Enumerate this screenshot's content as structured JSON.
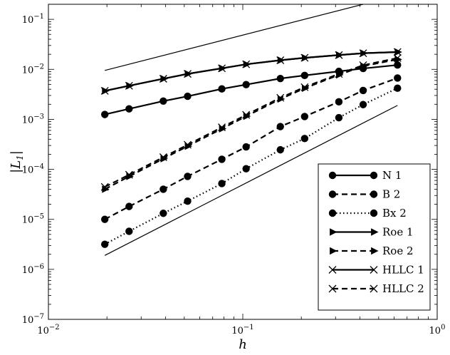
{
  "chart_data": {
    "type": "line",
    "x_scale": "log",
    "y_scale": "log",
    "xlim": [
      0.01,
      1
    ],
    "ylim": [
      1e-07,
      0.2
    ],
    "xlabel": "h",
    "ylabel": "|L_1|",
    "grid": false,
    "legend_position": "lower-right",
    "x_ticks": [
      {
        "value": 0.01,
        "base": "10",
        "exp": "−2"
      },
      {
        "value": 0.1,
        "base": "10",
        "exp": "−1"
      },
      {
        "value": 1,
        "base": "10",
        "exp": "0"
      }
    ],
    "y_ticks": [
      {
        "value": 1e-07,
        "base": "10",
        "exp": "−7"
      },
      {
        "value": 1e-06,
        "base": "10",
        "exp": "−6"
      },
      {
        "value": 1e-05,
        "base": "10",
        "exp": "−5"
      },
      {
        "value": 0.0001,
        "base": "10",
        "exp": "−4"
      },
      {
        "value": 0.001,
        "base": "10",
        "exp": "−3"
      },
      {
        "value": 0.01,
        "base": "10",
        "exp": "−2"
      },
      {
        "value": 0.1,
        "base": "10",
        "exp": "−1"
      }
    ],
    "x": [
      0.0195,
      0.026,
      0.039,
      0.052,
      0.078,
      0.104,
      0.156,
      0.208,
      0.312,
      0.416,
      0.625
    ],
    "series": [
      {
        "name": "N 1",
        "style": "solid",
        "marker": "circle",
        "values": [
          0.00125,
          0.00162,
          0.00232,
          0.00289,
          0.00406,
          0.00495,
          0.00655,
          0.00755,
          0.0091,
          0.0104,
          0.0122
        ]
      },
      {
        "name": "B 2",
        "style": "dashed",
        "marker": "circle",
        "values": [
          1e-05,
          1.81e-05,
          4e-05,
          7.24e-05,
          0.000159,
          0.000281,
          0.000717,
          0.00114,
          0.00224,
          0.00378,
          0.0067
        ]
      },
      {
        "name": "Bx 2",
        "style": "dotted",
        "marker": "circle",
        "values": [
          3.17e-06,
          5.77e-06,
          1.32e-05,
          2.31e-05,
          5.2e-05,
          0.000103,
          0.000246,
          0.000413,
          0.00108,
          0.00197,
          0.0042
        ]
      },
      {
        "name": "Roe 1",
        "style": "solid",
        "marker": "triangle-right",
        "values": [
          0.00371,
          0.00469,
          0.00648,
          0.00812,
          0.0105,
          0.0126,
          0.0152,
          0.017,
          0.0193,
          0.021,
          0.0222
        ]
      },
      {
        "name": "Roe 2",
        "style": "dashed",
        "marker": "triangle-right",
        "values": [
          4e-05,
          7.19e-05,
          0.000163,
          0.00029,
          0.000648,
          0.00115,
          0.00255,
          0.00418,
          0.00775,
          0.0116,
          0.0158
        ]
      },
      {
        "name": "HLLC 1",
        "style": "solid",
        "marker": "x",
        "values": [
          0.00371,
          0.00469,
          0.00648,
          0.00812,
          0.0105,
          0.0126,
          0.0152,
          0.017,
          0.0193,
          0.021,
          0.0222
        ]
      },
      {
        "name": "HLLC 2",
        "style": "dashed",
        "marker": "x",
        "values": [
          4.45e-05,
          7.8e-05,
          0.000175,
          0.00031,
          0.000692,
          0.00123,
          0.0027,
          0.0044,
          0.0081,
          0.0121,
          0.0168
        ]
      }
    ],
    "reference_lines": [
      {
        "x": [
          0.0195,
          0.625
        ],
        "values": [
          0.0095,
          0.3
        ]
      },
      {
        "x": [
          0.0195,
          0.625
        ],
        "values": [
          1.9e-06,
          0.0019
        ]
      }
    ]
  },
  "colors": {
    "ink": "#000000",
    "background": "#ffffff"
  }
}
